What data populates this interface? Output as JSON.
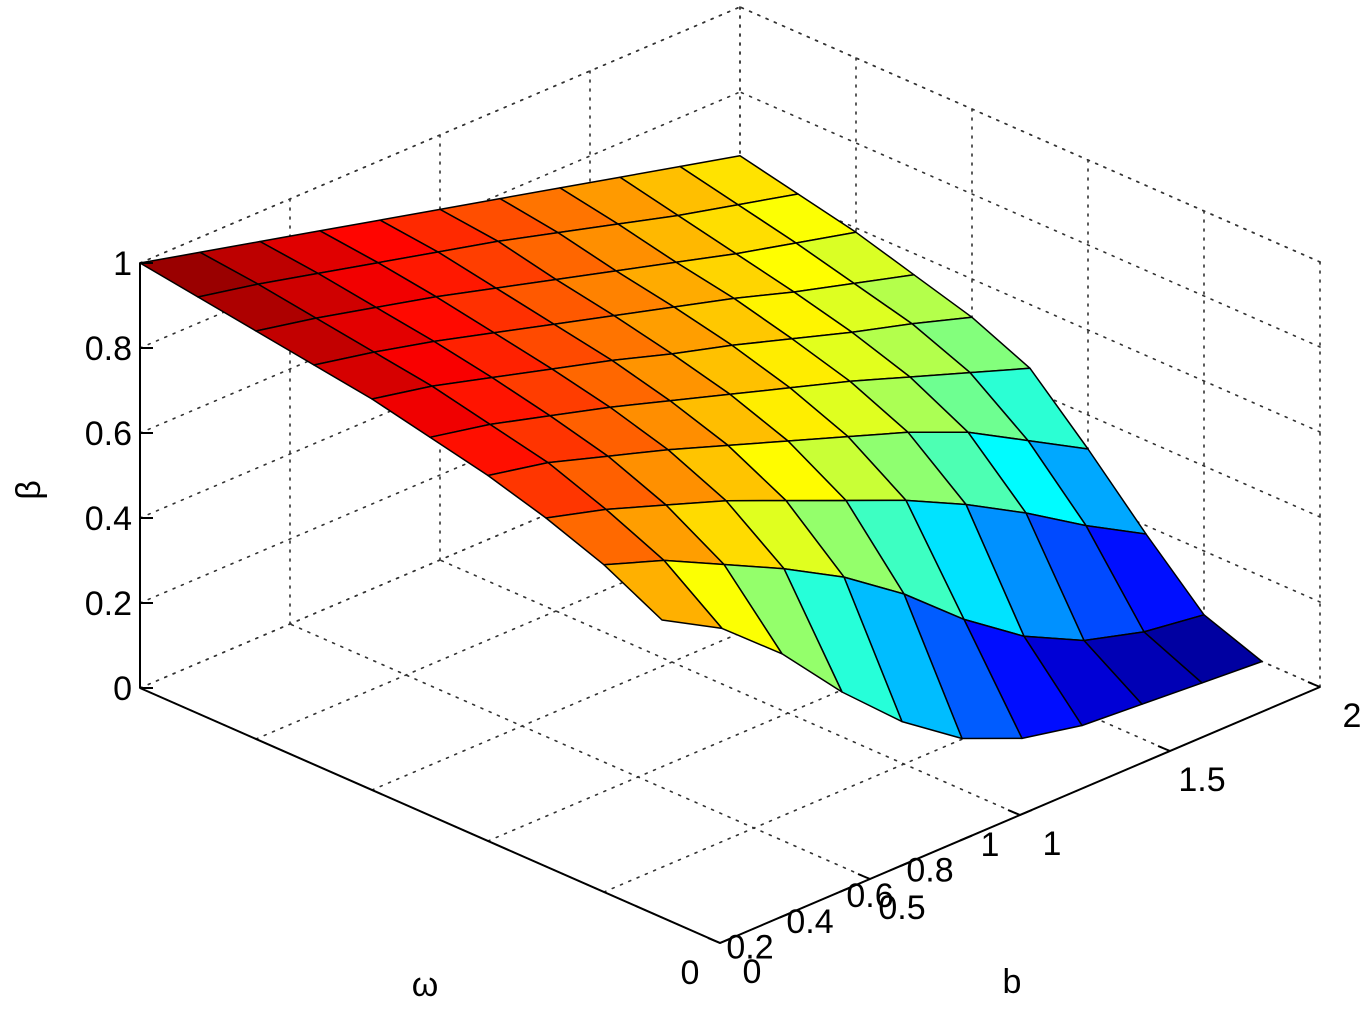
{
  "chart_data": {
    "type": "surface",
    "xlabel": "b",
    "ylabel": "ω",
    "zlabel": "β",
    "xlim": [
      0,
      2
    ],
    "ylim": [
      0,
      1
    ],
    "zlim": [
      0,
      1
    ],
    "grid": true,
    "colormap": "jet",
    "x_ticks": [
      {
        "value": 0,
        "label": "0"
      },
      {
        "value": 0.5,
        "label": "0.5"
      },
      {
        "value": 1,
        "label": "1"
      },
      {
        "value": 1.5,
        "label": "1.5"
      },
      {
        "value": 2,
        "label": "2"
      }
    ],
    "y_ticks": [
      {
        "value": 0,
        "label": "0"
      },
      {
        "value": 0.2,
        "label": "0.2"
      },
      {
        "value": 0.4,
        "label": "0.4"
      },
      {
        "value": 0.6,
        "label": "0.6"
      },
      {
        "value": 0.8,
        "label": "0.8"
      },
      {
        "value": 1,
        "label": "1"
      }
    ],
    "z_ticks": [
      {
        "value": 0,
        "label": "0"
      },
      {
        "value": 0.2,
        "label": "0.2"
      },
      {
        "value": 0.4,
        "label": "0.4"
      },
      {
        "value": 0.6,
        "label": "0.6"
      },
      {
        "value": 0.8,
        "label": "0.8"
      },
      {
        "value": 1,
        "label": "1"
      }
    ],
    "b_values": [
      0,
      0.2,
      0.4,
      0.6,
      0.8,
      1.0,
      1.2,
      1.4,
      1.6,
      1.8,
      2.0
    ],
    "omega_values": [
      1.0,
      0.9,
      0.8,
      0.7,
      0.6,
      0.5,
      0.4,
      0.3,
      0.2,
      0.1
    ],
    "z": [
      [
        1.0,
        0.965,
        0.93,
        0.895,
        0.86,
        0.825,
        0.79,
        0.755,
        0.72,
        0.685,
        0.65
      ],
      [
        0.98,
        0.95,
        0.915,
        0.88,
        0.845,
        0.81,
        0.77,
        0.73,
        0.69,
        0.655,
        0.62
      ],
      [
        0.96,
        0.93,
        0.895,
        0.86,
        0.82,
        0.78,
        0.74,
        0.7,
        0.66,
        0.625,
        0.59
      ],
      [
        0.94,
        0.91,
        0.875,
        0.835,
        0.795,
        0.755,
        0.715,
        0.675,
        0.63,
        0.59,
        0.55
      ],
      [
        0.92,
        0.89,
        0.85,
        0.81,
        0.77,
        0.725,
        0.685,
        0.64,
        0.595,
        0.555,
        0.51
      ],
      [
        0.89,
        0.86,
        0.82,
        0.78,
        0.735,
        0.69,
        0.645,
        0.6,
        0.55,
        0.5,
        0.45
      ],
      [
        0.86,
        0.83,
        0.785,
        0.74,
        0.69,
        0.64,
        0.59,
        0.54,
        0.48,
        0.4,
        0.32
      ],
      [
        0.82,
        0.78,
        0.73,
        0.68,
        0.62,
        0.56,
        0.5,
        0.43,
        0.35,
        0.26,
        0.18
      ],
      [
        0.77,
        0.72,
        0.65,
        0.58,
        0.5,
        0.4,
        0.28,
        0.18,
        0.11,
        0.07,
        0.05
      ],
      [
        0.7,
        0.62,
        0.5,
        0.35,
        0.22,
        0.12,
        0.06,
        0.03,
        0.02,
        0.01,
        0.0
      ]
    ]
  }
}
